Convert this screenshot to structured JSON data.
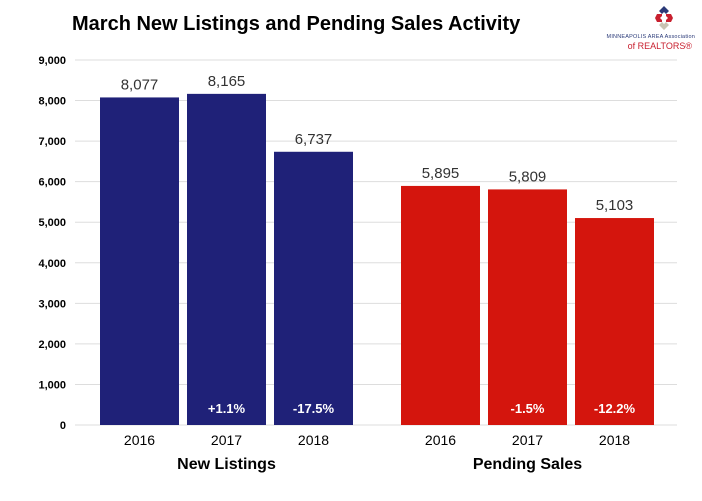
{
  "logo": {
    "line1": "MINNEAPOLIS AREA Association",
    "line2": "of REALTORS®"
  },
  "chart_data": {
    "type": "bar",
    "title": "March New Listings and Pending Sales Activity",
    "xlabel": "",
    "ylabel": "",
    "ylim": [
      0,
      9000
    ],
    "yticks": [
      0,
      1000,
      2000,
      3000,
      4000,
      5000,
      6000,
      7000,
      8000,
      9000
    ],
    "ytick_labels": [
      "0",
      "1,000",
      "2,000",
      "3,000",
      "4,000",
      "5,000",
      "6,000",
      "7,000",
      "8,000",
      "9,000"
    ],
    "grid": true,
    "groups": [
      {
        "name": "New Listings",
        "color": "#1f2178",
        "categories": [
          "2016",
          "2017",
          "2018"
        ],
        "values": [
          8077,
          8165,
          6737
        ],
        "value_labels": [
          "8,077",
          "8,165",
          "6,737"
        ],
        "change_labels": [
          "",
          "+1.1%",
          "-17.5%"
        ]
      },
      {
        "name": "Pending Sales",
        "color": "#d4150d",
        "categories": [
          "2016",
          "2017",
          "2018"
        ],
        "values": [
          5895,
          5809,
          5103
        ],
        "value_labels": [
          "5,895",
          "5,809",
          "5,103"
        ],
        "change_labels": [
          "",
          "-1.5%",
          "-12.2%"
        ]
      }
    ]
  }
}
